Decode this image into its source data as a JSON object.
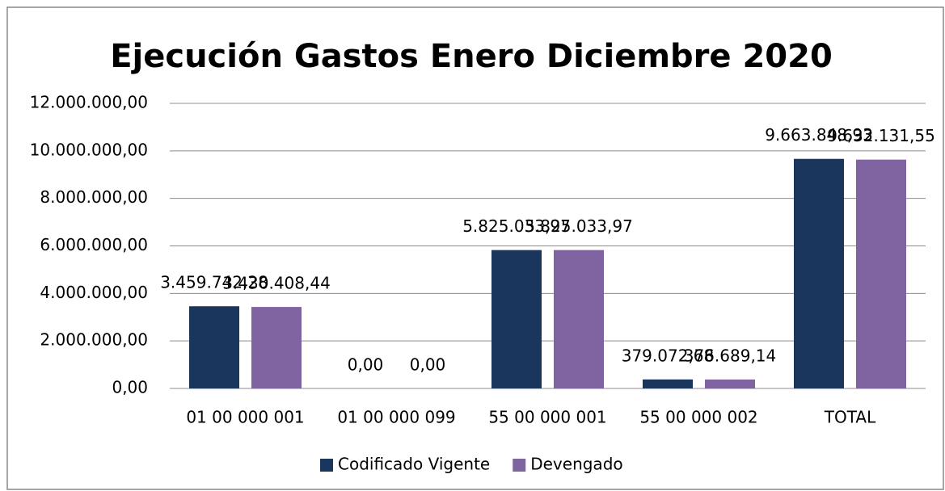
{
  "chart_data": {
    "type": "bar",
    "title": "Ejecución Gastos Enero Diciembre 2020",
    "categories": [
      "01 00 000 001",
      "01 00 000 099",
      "55 00 000 001",
      "55 00 000 002",
      "TOTAL"
    ],
    "series": [
      {
        "name": "Codificado Vigente",
        "color": "#1b365d",
        "values": [
          3459742.28,
          0,
          5825033.97,
          379072.68,
          9663848.93
        ],
        "value_labels": [
          "3.459.742,28",
          "0,00",
          "5.825.033,97",
          "379.072,68",
          "9.663.848,93"
        ]
      },
      {
        "name": "Devengado",
        "color": "#8064a2",
        "values": [
          3430408.44,
          0,
          5825033.97,
          376689.14,
          9632131.55
        ],
        "value_labels": [
          "3.430.408,44",
          "0,00",
          "5.825.033,97",
          "376.689,14",
          "9.632.131,55"
        ]
      }
    ],
    "ylim": [
      0,
      12000000
    ],
    "yticks": [
      {
        "value": 0,
        "label": "0,00"
      },
      {
        "value": 2000000,
        "label": "2.000.000,00"
      },
      {
        "value": 4000000,
        "label": "4.000.000,00"
      },
      {
        "value": 6000000,
        "label": "6.000.000,00"
      },
      {
        "value": 8000000,
        "label": "8.000.000,00"
      },
      {
        "value": 10000000,
        "label": "10.000.000,00"
      },
      {
        "value": 12000000,
        "label": "12.000.000,00"
      }
    ],
    "grid": true,
    "legend": "bottom"
  }
}
